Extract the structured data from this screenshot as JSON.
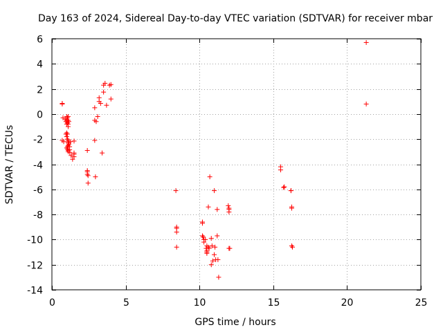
{
  "chart_data": {
    "type": "scatter",
    "title": "Day 163 of 2024, Sidereal Day-to-day VTEC variation (SDTVAR) for receiver mbar",
    "xlabel": "GPS time / hours",
    "ylabel": "SDTVAR / TECUs",
    "xlim": [
      0,
      25
    ],
    "ylim": [
      -14,
      6
    ],
    "xticks": [
      0,
      5,
      10,
      15,
      20,
      25
    ],
    "yticks": [
      -14,
      -12,
      -10,
      -8,
      -6,
      -4,
      -2,
      0,
      2,
      4,
      6
    ],
    "xtick_labels": [
      "0",
      "5",
      "10",
      "15",
      "20",
      "25"
    ],
    "ytick_labels": [
      "-14",
      "-12",
      "-10",
      "-8",
      "-6",
      "-4",
      "-2",
      "0",
      "2",
      "4",
      "6"
    ],
    "grid": true,
    "marker": "plus",
    "color": "#ff0000",
    "x": [
      0.7,
      0.7,
      0.7,
      0.75,
      0.8,
      0.9,
      0.95,
      1.0,
      1.0,
      1.0,
      1.05,
      1.05,
      1.1,
      1.1,
      1.1,
      1.15,
      1.1,
      1.0,
      0.95,
      1.0,
      1.05,
      1.1,
      1.1,
      1.15,
      1.1,
      1.05,
      1.05,
      1.0,
      1.1,
      1.2,
      1.1,
      1.2,
      1.1,
      1.05,
      1.15,
      1.2,
      1.25,
      1.3,
      1.4,
      1.5,
      1.5,
      1.5,
      1.5,
      2.4,
      2.4,
      2.4,
      2.4,
      2.45,
      2.45,
      2.9,
      2.9,
      2.9,
      2.95,
      3.0,
      3.1,
      3.2,
      3.2,
      3.3,
      3.4,
      3.5,
      3.5,
      3.6,
      3.7,
      3.9,
      4.0,
      4.0,
      8.4,
      8.45,
      8.45,
      8.45,
      8.45,
      10.2,
      10.2,
      10.2,
      10.25,
      10.3,
      10.3,
      10.4,
      10.45,
      10.5,
      10.5,
      10.5,
      10.5,
      10.6,
      10.6,
      10.65,
      10.7,
      10.8,
      10.8,
      10.85,
      10.9,
      11.0,
      11.0,
      11.05,
      11.1,
      11.2,
      11.2,
      11.25,
      11.3,
      11.95,
      12.0,
      12.0,
      12.0,
      12.0,
      12.05,
      15.5,
      15.5,
      15.7,
      15.75,
      16.2,
      16.2,
      16.25,
      16.25,
      16.25,
      16.3,
      21.3,
      21.3
    ],
    "y": [
      0.85,
      0.8,
      -2.1,
      -0.3,
      -2.2,
      -0.4,
      -0.6,
      -0.2,
      -0.5,
      -0.8,
      -0.7,
      -0.3,
      -0.5,
      -0.2,
      -0.8,
      -0.6,
      -1.0,
      -1.5,
      -1.6,
      -1.8,
      -2.0,
      -2.1,
      -2.3,
      -2.4,
      -2.5,
      -2.6,
      -2.8,
      -2.7,
      -2.9,
      -2.85,
      -3.0,
      -3.05,
      -2.2,
      -1.6,
      -2.3,
      -2.6,
      -2.2,
      -3.3,
      -3.6,
      -3.2,
      -3.4,
      -3.1,
      -2.15,
      -2.9,
      -4.5,
      -4.6,
      -4.8,
      -5.5,
      -4.9,
      0.5,
      -0.5,
      -2.1,
      -5.0,
      -0.6,
      -0.2,
      1.0,
      1.3,
      0.85,
      -3.1,
      1.75,
      2.3,
      2.45,
      0.7,
      2.3,
      2.35,
      1.2,
      -6.1,
      -9.0,
      -9.1,
      -9.4,
      -10.6,
      -8.7,
      -8.6,
      -9.7,
      -9.8,
      -10.0,
      -10.2,
      -10.0,
      -10.7,
      -10.5,
      -10.9,
      -11.0,
      -11.1,
      -7.4,
      -10.6,
      -10.7,
      -5.0,
      -9.9,
      -12.0,
      -10.5,
      -11.7,
      -6.1,
      -11.2,
      -10.6,
      -11.6,
      -7.6,
      -9.7,
      -11.6,
      -13.0,
      -7.3,
      -7.5,
      -7.6,
      -10.7,
      -7.8,
      -10.7,
      -4.2,
      -4.45,
      -5.85,
      -5.8,
      -6.1,
      -6.1,
      -7.4,
      -7.5,
      -10.5,
      -10.6,
      5.7,
      0.8
    ]
  }
}
